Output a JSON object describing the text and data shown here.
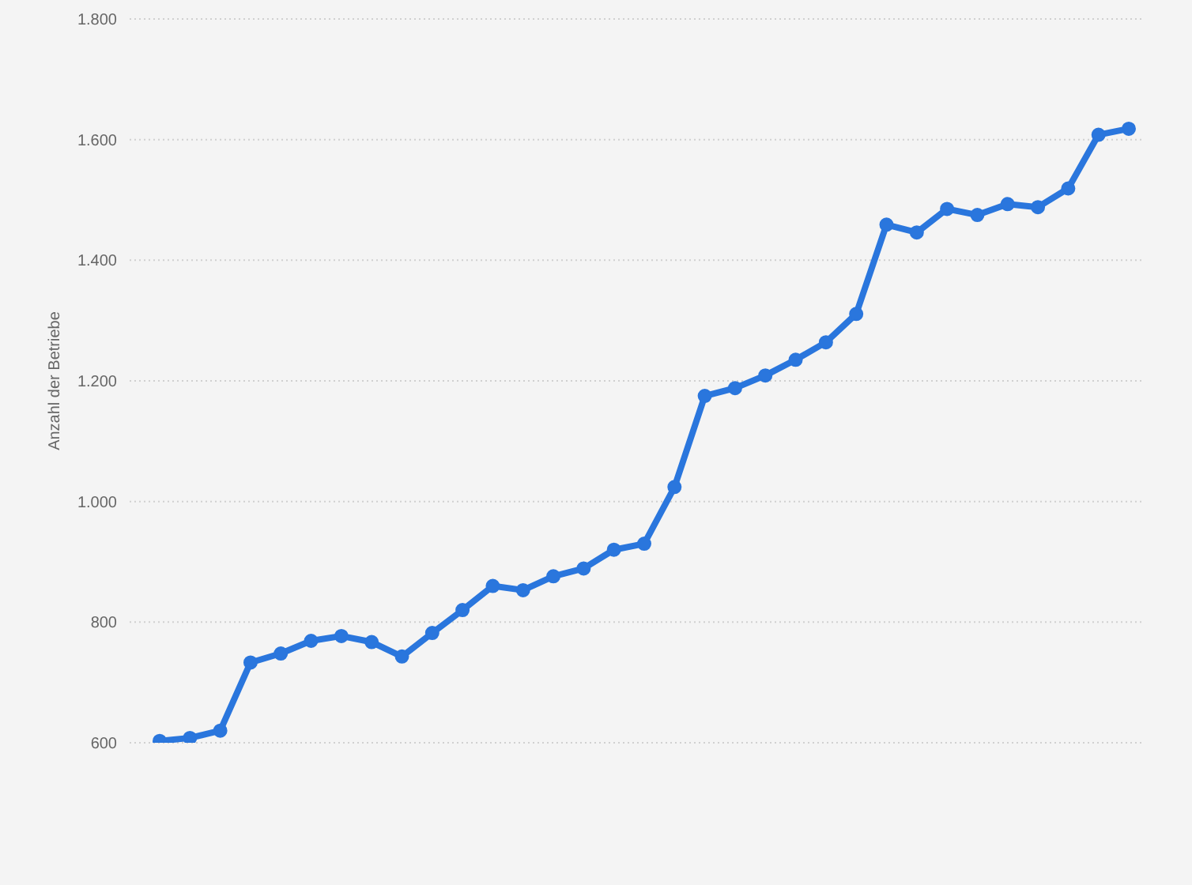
{
  "chart_data": {
    "type": "line",
    "ylabel": "Anzahl der Betriebe",
    "categories": [
      null,
      null,
      null,
      null,
      null,
      null,
      null,
      null,
      null,
      null,
      null,
      null,
      null,
      null,
      null,
      null,
      null,
      null,
      null,
      null,
      null,
      null,
      null,
      null,
      null,
      null,
      null,
      null,
      null,
      null,
      null,
      null,
      null
    ],
    "series": [
      {
        "color": "#2a76dd",
        "values": [
          603,
          608,
          620,
          733,
          748,
          769,
          777,
          767,
          743,
          782,
          820,
          860,
          853,
          876,
          889,
          920,
          930,
          1024,
          1175,
          1188,
          1209,
          1235,
          1264,
          1311,
          1459,
          1446,
          1485,
          1475,
          1493,
          1488,
          1519,
          1608,
          1618
        ]
      }
    ],
    "ylim": [
      600,
      1800
    ],
    "yticks": [
      {
        "value": 600,
        "label": "600"
      },
      {
        "value": 800,
        "label": "800"
      },
      {
        "value": 1000,
        "label": "1.000"
      },
      {
        "value": 1200,
        "label": "1.200"
      },
      {
        "value": 1400,
        "label": "1.400"
      },
      {
        "value": 1600,
        "label": "1.600"
      },
      {
        "value": 1800,
        "label": "1.800"
      }
    ],
    "grid": "y",
    "marker": "circle",
    "line_style": "solid",
    "legend": false
  }
}
